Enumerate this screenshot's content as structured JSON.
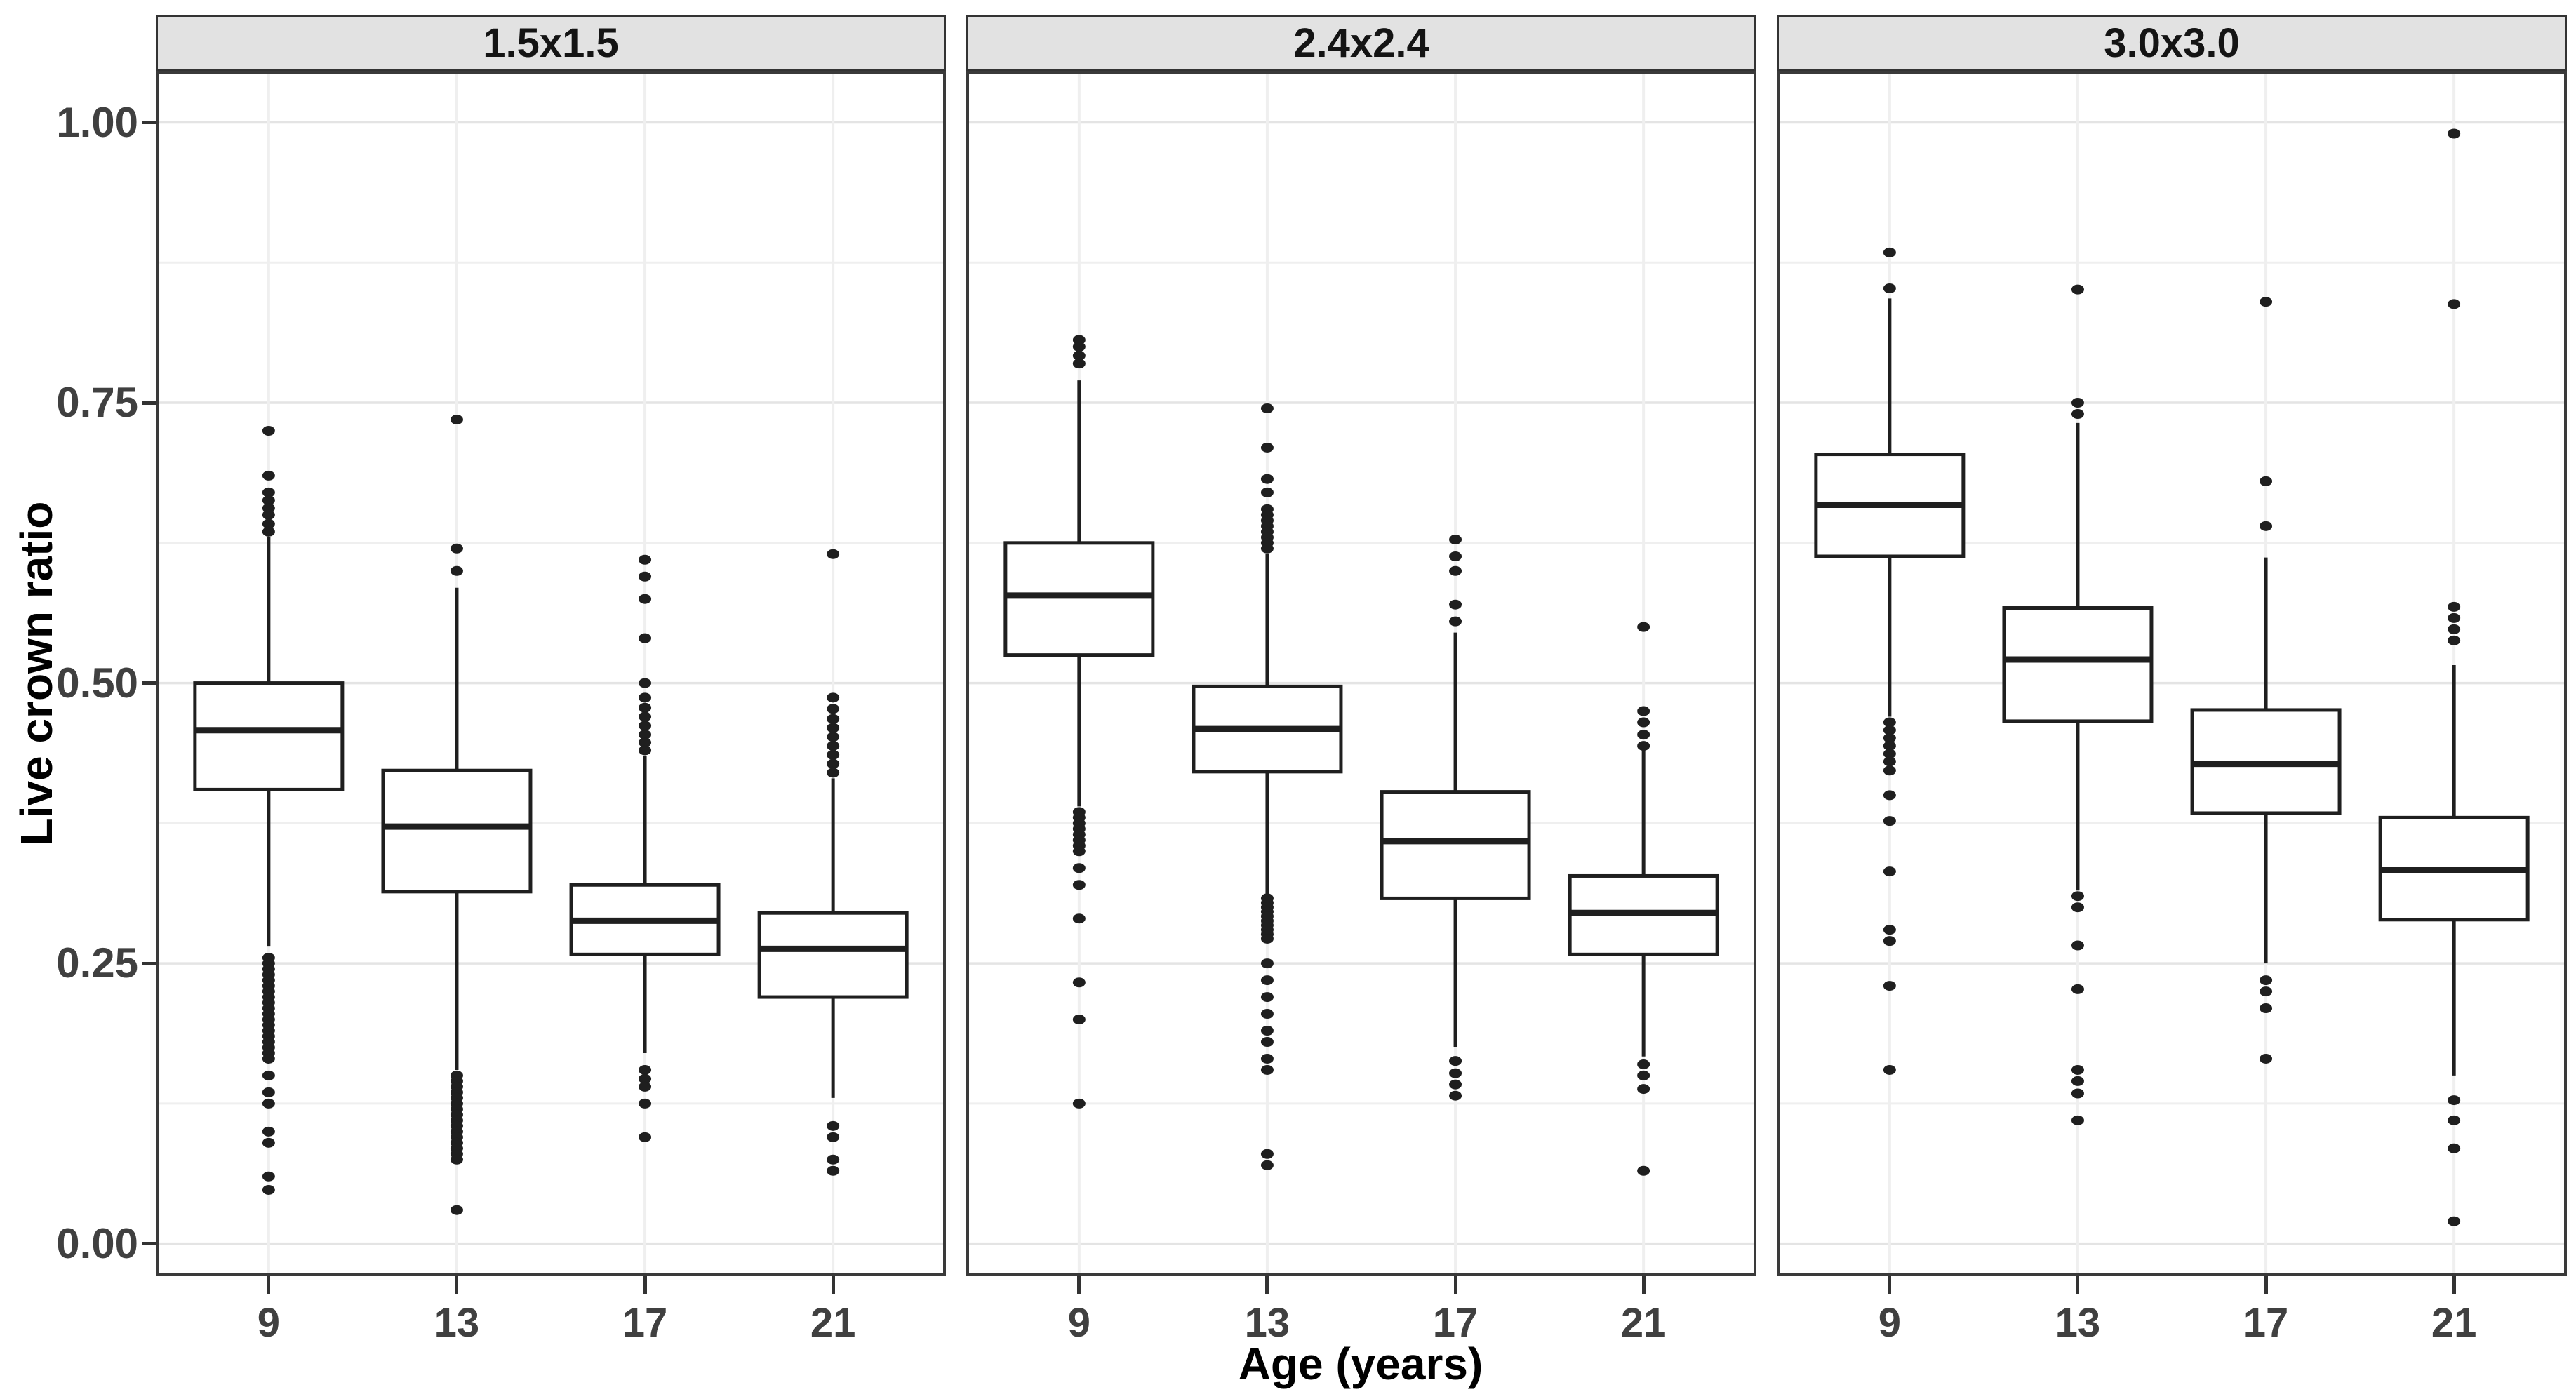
{
  "chart_data": {
    "type": "boxplot",
    "title": "",
    "xlabel": "Age (years)",
    "ylabel": "Live crown ratio",
    "x_categories": [
      "9",
      "13",
      "17",
      "21"
    ],
    "y_axis": {
      "ticks": [
        {
          "label": "0.00",
          "value": 0.0
        },
        {
          "label": "0.25",
          "value": 0.25
        },
        {
          "label": "0.50",
          "value": 0.5
        },
        {
          "label": "0.75",
          "value": 0.75
        },
        {
          "label": "1.00",
          "value": 1.0
        }
      ],
      "minor_step": 0.125,
      "ylim": [
        -0.029,
        1.046
      ],
      "grid": "on"
    },
    "legend": "none",
    "facets": [
      {
        "label": "1.5x1.5",
        "boxes": [
          {
            "age": "9",
            "whisker_low": 0.265,
            "q1": 0.405,
            "median": 0.458,
            "q3": 0.5,
            "whisker_high": 0.63,
            "outliers": [
              0.725,
              0.685,
              0.67,
              0.663,
              0.656,
              0.65,
              0.642,
              0.635,
              0.255,
              0.25,
              0.245,
              0.24,
              0.235,
              0.23,
              0.225,
              0.22,
              0.215,
              0.21,
              0.205,
              0.2,
              0.195,
              0.19,
              0.185,
              0.18,
              0.175,
              0.17,
              0.165,
              0.15,
              0.135,
              0.125,
              0.1,
              0.09,
              0.06,
              0.048
            ]
          },
          {
            "age": "13",
            "whisker_low": 0.155,
            "q1": 0.314,
            "median": 0.372,
            "q3": 0.422,
            "whisker_high": 0.585,
            "outliers": [
              0.735,
              0.62,
              0.6,
              0.15,
              0.145,
              0.14,
              0.135,
              0.13,
              0.125,
              0.12,
              0.115,
              0.11,
              0.105,
              0.1,
              0.095,
              0.09,
              0.085,
              0.08,
              0.075,
              0.03
            ]
          },
          {
            "age": "17",
            "whisker_low": 0.17,
            "q1": 0.258,
            "median": 0.288,
            "q3": 0.32,
            "whisker_high": 0.435,
            "outliers": [
              0.61,
              0.595,
              0.575,
              0.54,
              0.5,
              0.487,
              0.478,
              0.47,
              0.462,
              0.454,
              0.447,
              0.44,
              0.155,
              0.147,
              0.14,
              0.125,
              0.095
            ]
          },
          {
            "age": "21",
            "whisker_low": 0.13,
            "q1": 0.22,
            "median": 0.263,
            "q3": 0.295,
            "whisker_high": 0.415,
            "outliers": [
              0.615,
              0.487,
              0.477,
              0.468,
              0.46,
              0.452,
              0.444,
              0.436,
              0.428,
              0.42,
              0.105,
              0.095,
              0.075,
              0.065
            ]
          }
        ]
      },
      {
        "label": "2.4x2.4",
        "boxes": [
          {
            "age": "9",
            "whisker_low": 0.39,
            "q1": 0.525,
            "median": 0.578,
            "q3": 0.625,
            "whisker_high": 0.77,
            "outliers": [
              0.806,
              0.8,
              0.792,
              0.785,
              0.385,
              0.38,
              0.375,
              0.37,
              0.365,
              0.36,
              0.355,
              0.35,
              0.335,
              0.32,
              0.29,
              0.233,
              0.2,
              0.125
            ]
          },
          {
            "age": "13",
            "whisker_low": 0.31,
            "q1": 0.421,
            "median": 0.459,
            "q3": 0.497,
            "whisker_high": 0.615,
            "outliers": [
              0.745,
              0.71,
              0.682,
              0.67,
              0.655,
              0.65,
              0.645,
              0.64,
              0.635,
              0.63,
              0.625,
              0.62,
              0.308,
              0.304,
              0.3,
              0.296,
              0.292,
              0.288,
              0.284,
              0.28,
              0.276,
              0.272,
              0.25,
              0.235,
              0.22,
              0.205,
              0.19,
              0.18,
              0.165,
              0.155,
              0.08,
              0.07
            ]
          },
          {
            "age": "17",
            "whisker_low": 0.175,
            "q1": 0.308,
            "median": 0.359,
            "q3": 0.403,
            "whisker_high": 0.545,
            "outliers": [
              0.628,
              0.613,
              0.6,
              0.57,
              0.555,
              0.163,
              0.152,
              0.142,
              0.132
            ]
          },
          {
            "age": "21",
            "whisker_low": 0.167,
            "q1": 0.258,
            "median": 0.295,
            "q3": 0.328,
            "whisker_high": 0.44,
            "outliers": [
              0.55,
              0.475,
              0.465,
              0.454,
              0.444,
              0.16,
              0.15,
              0.138,
              0.065
            ]
          }
        ]
      },
      {
        "label": "3.0x3.0",
        "boxes": [
          {
            "age": "9",
            "whisker_low": 0.47,
            "q1": 0.613,
            "median": 0.659,
            "q3": 0.704,
            "whisker_high": 0.843,
            "outliers": [
              0.884,
              0.852,
              0.465,
              0.458,
              0.451,
              0.444,
              0.437,
              0.43,
              0.422,
              0.4,
              0.377,
              0.332,
              0.28,
              0.27,
              0.23,
              0.155
            ]
          },
          {
            "age": "13",
            "whisker_low": 0.315,
            "q1": 0.466,
            "median": 0.521,
            "q3": 0.567,
            "whisker_high": 0.732,
            "outliers": [
              0.851,
              0.75,
              0.74,
              0.31,
              0.3,
              0.266,
              0.227,
              0.155,
              0.145,
              0.134,
              0.11
            ]
          },
          {
            "age": "17",
            "whisker_low": 0.25,
            "q1": 0.384,
            "median": 0.428,
            "q3": 0.476,
            "whisker_high": 0.612,
            "outliers": [
              0.84,
              0.68,
              0.64,
              0.235,
              0.225,
              0.21,
              0.165
            ]
          },
          {
            "age": "21",
            "whisker_low": 0.15,
            "q1": 0.289,
            "median": 0.333,
            "q3": 0.38,
            "whisker_high": 0.516,
            "outliers": [
              0.99,
              0.838,
              0.568,
              0.558,
              0.548,
              0.538,
              0.128,
              0.11,
              0.085,
              0.02
            ]
          }
        ]
      }
    ]
  },
  "style": {
    "background": "#ffffff",
    "strip_background": "#e2e2e2",
    "strip_border": "#333333",
    "panel_border": "#3a3a3a",
    "grid_major": "#e4e4e4",
    "grid_minor": "#efefef",
    "box_fill": "#ffffff",
    "box_stroke": "#1f1f1f",
    "tick_color": "#333333",
    "tick_label_color": "#404040",
    "axis_title_color": "#000000"
  }
}
